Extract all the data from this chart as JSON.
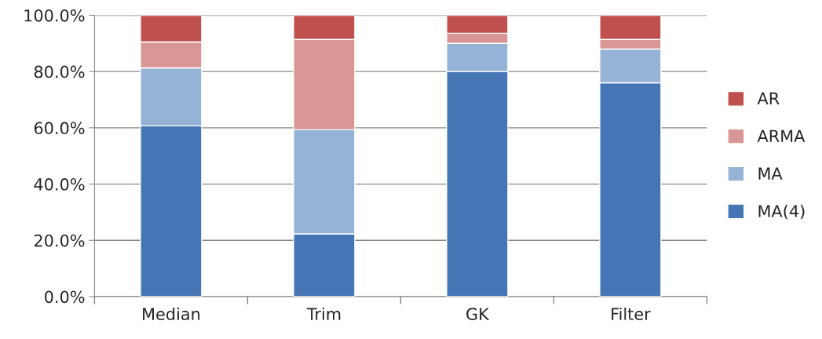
{
  "chart_data": {
    "type": "bar",
    "stacked": true,
    "categories": [
      "Median",
      "Trim",
      "GK",
      "Filter"
    ],
    "series": [
      {
        "name": "MA(4)",
        "color": "#4575b4",
        "values": [
          60.7,
          22.3,
          80.0,
          76.0
        ]
      },
      {
        "name": "MA",
        "color": "#95b3d7",
        "values": [
          20.6,
          37.0,
          10.0,
          12.0
        ]
      },
      {
        "name": "ARMA",
        "color": "#d99694",
        "values": [
          9.2,
          32.1,
          3.6,
          3.4
        ]
      },
      {
        "name": "AR",
        "color": "#c0504d",
        "values": [
          9.5,
          8.6,
          6.4,
          8.6
        ]
      }
    ],
    "ylim": [
      0,
      100
    ],
    "yticks": [
      {
        "value": 0,
        "label": "0.0%"
      },
      {
        "value": 20,
        "label": "20.0%"
      },
      {
        "value": 40,
        "label": "40.0%"
      },
      {
        "value": 60,
        "label": "60.0%"
      },
      {
        "value": 80,
        "label": "80.0%"
      },
      {
        "value": 100,
        "label": "100.0%"
      }
    ],
    "grid": "y",
    "legend": "right"
  }
}
